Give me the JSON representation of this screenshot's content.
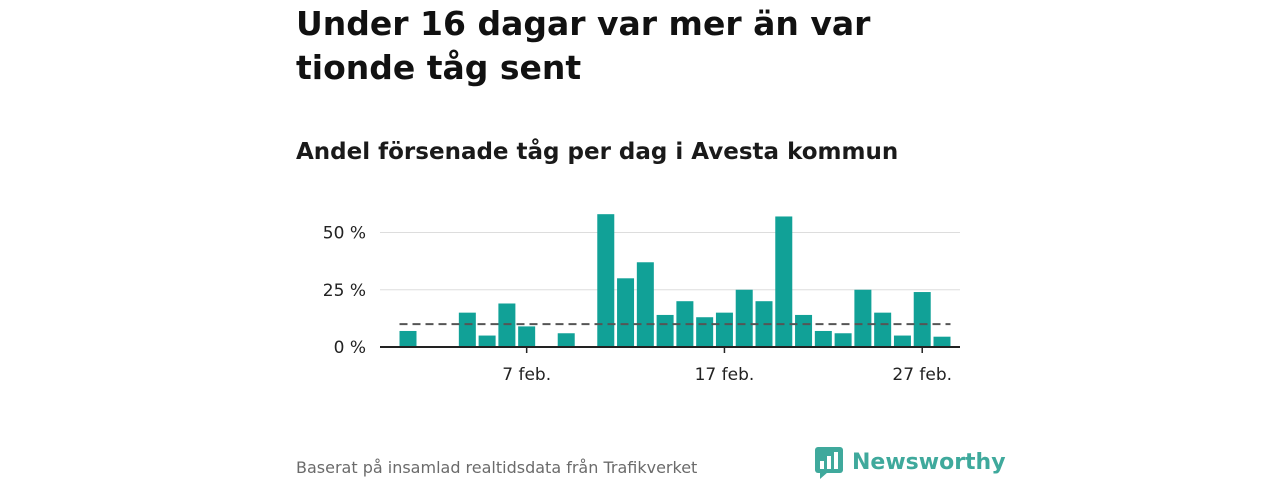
{
  "title": "Under 16 dagar var mer än var tionde tåg sent",
  "subtitle": "Andel försenade tåg per dag i Avesta kommun",
  "source": "Baserat på insamlad realtidsdata från Trafikverket",
  "brand": {
    "name": "Newsworthy",
    "icon": "newsworthy-logo-icon"
  },
  "colors": {
    "bar": "#11a197",
    "brand": "#3fa99c",
    "reference_line": "#555555",
    "grid": "#dddddd"
  },
  "chart_data": {
    "type": "bar",
    "x": [
      "1 feb.",
      "2 feb.",
      "3 feb.",
      "4 feb.",
      "5 feb.",
      "6 feb.",
      "7 feb.",
      "8 feb.",
      "9 feb.",
      "10 feb.",
      "11 feb.",
      "12 feb.",
      "13 feb.",
      "14 feb.",
      "15 feb.",
      "16 feb.",
      "17 feb.",
      "18 feb.",
      "19 feb.",
      "20 feb.",
      "21 feb.",
      "22 feb.",
      "23 feb.",
      "24 feb.",
      "25 feb.",
      "26 feb.",
      "27 feb.",
      "28 feb."
    ],
    "values": [
      7,
      null,
      null,
      15,
      5,
      19,
      9,
      null,
      6,
      null,
      58,
      30,
      37,
      14,
      20,
      13,
      15,
      25,
      20,
      57,
      14,
      7,
      6,
      25,
      15,
      5,
      24,
      4.5
    ],
    "reference_line": 10,
    "yticks": [
      {
        "value": 0,
        "label": "0 %"
      },
      {
        "value": 25,
        "label": "25 %"
      },
      {
        "value": 50,
        "label": "50 %"
      }
    ],
    "xticks": [
      {
        "index": 6,
        "label": "7 feb."
      },
      {
        "index": 16,
        "label": "17 feb."
      },
      {
        "index": 26,
        "label": "27 feb."
      }
    ],
    "ylim": [
      0,
      60
    ],
    "grid": true
  }
}
